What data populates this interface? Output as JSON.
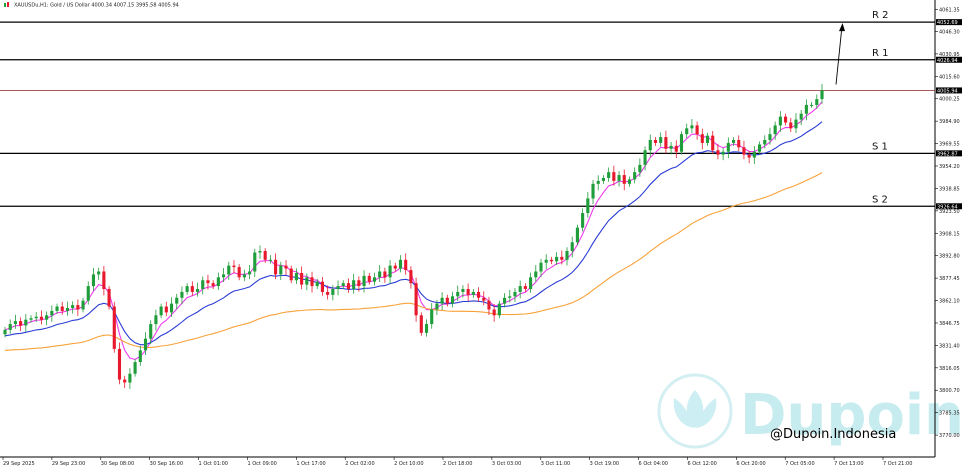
{
  "header": {
    "text": "XAUUSDu,H1: Gold / US Dollar  4000.34 4007.15 3995.58 4005.94"
  },
  "watermark": {
    "brand": "Dupoin",
    "credit": "@Dupoin.Indonesia"
  },
  "colors": {
    "bull": "#1f9d3a",
    "bear": "#e8192c",
    "ma_fast": "#ee3df0",
    "ma_mid": "#2a3cd6",
    "ma_slow": "#f7a23a",
    "level": "#000000",
    "current_price_line": "#a0434a",
    "watermark": "#c7ecef"
  },
  "chart_data": {
    "type": "candlestick",
    "symbol": "XAUUSDu",
    "timeframe": "H1",
    "description": "Gold / US Dollar",
    "ohlc": {
      "open": 4000.34,
      "high": 4007.15,
      "low": 3995.58,
      "close": 4005.94
    },
    "ylim": [
      3755,
      4061
    ],
    "yticks": [
      "4061.35",
      "4046.30",
      "4030.95",
      "4015.60",
      "4000.25",
      "3984.90",
      "3969.55",
      "3954.20",
      "3938.85",
      "3923.50",
      "3908.15",
      "3892.80",
      "3877.45",
      "3862.10",
      "3846.75",
      "3831.40",
      "3816.05",
      "3800.70",
      "3785.35",
      "3770.00"
    ],
    "xticks": [
      "29 Sep 2025",
      "29 Sep 23:00",
      "30 Sep 08:00",
      "30 Sep 16:00",
      "1 Oct 01:00",
      "1 Oct 09:00",
      "1 Oct 17:00",
      "2 Oct 02:00",
      "2 Oct 10:00",
      "2 Oct 18:00",
      "3 Oct 03:00",
      "3 Oct 11:00",
      "3 Oct 19:00",
      "6 Oct 04:00",
      "6 Oct 12:00",
      "6 Oct 20:00",
      "7 Oct 05:00",
      "7 Oct 13:00",
      "7 Oct 21:00"
    ],
    "levels": [
      {
        "label": "R 2",
        "price": 4052.69,
        "tag": "4052.69"
      },
      {
        "label": "R 1",
        "price": 4026.94,
        "tag": "4026.94"
      },
      {
        "label": "S 1",
        "price": 3962.87,
        "tag": "3962.87"
      },
      {
        "label": "S 2",
        "price": 3926.64,
        "tag": "3926.64"
      }
    ],
    "current_price": {
      "price": 4005.94,
      "tag": "4005.94"
    },
    "closes": [
      3842,
      3846,
      3848,
      3845,
      3849,
      3850,
      3851,
      3849,
      3852,
      3855,
      3858,
      3855,
      3857,
      3859,
      3856,
      3862,
      3872,
      3880,
      3882,
      3870,
      3858,
      3829,
      3808,
      3806,
      3812,
      3820,
      3828,
      3836,
      3846,
      3852,
      3858,
      3854,
      3860,
      3864,
      3868,
      3872,
      3868,
      3870,
      3876,
      3874,
      3872,
      3878,
      3880,
      3886,
      3885,
      3878,
      3880,
      3882,
      3895,
      3896,
      3890,
      3890,
      3880,
      3886,
      3884,
      3876,
      3881,
      3873,
      3878,
      3872,
      3875,
      3868,
      3866,
      3870,
      3872,
      3874,
      3870,
      3876,
      3872,
      3879,
      3875,
      3878,
      3882,
      3878,
      3886,
      3884,
      3890,
      3883,
      3874,
      3852,
      3840,
      3846,
      3856,
      3860,
      3864,
      3860,
      3865,
      3868,
      3870,
      3866,
      3868,
      3864,
      3862,
      3856,
      3852,
      3860,
      3864,
      3865,
      3868,
      3872,
      3870,
      3878,
      3882,
      3888,
      3890,
      3889,
      3892,
      3890,
      3896,
      3902,
      3912,
      3922,
      3932,
      3942,
      3944,
      3946,
      3950,
      3944,
      3948,
      3942,
      3945,
      3950,
      3955,
      3965,
      3972,
      3970,
      3974,
      3966,
      3968,
      3964,
      3976,
      3980,
      3982,
      3976,
      3970,
      3975,
      3965,
      3962,
      3964,
      3970,
      3972,
      3967,
      3962,
      3960,
      3964,
      3969,
      3972,
      3976,
      3982,
      3988,
      3984,
      3980,
      3986,
      3990,
      3996,
      3996,
      4000,
      4006
    ]
  }
}
